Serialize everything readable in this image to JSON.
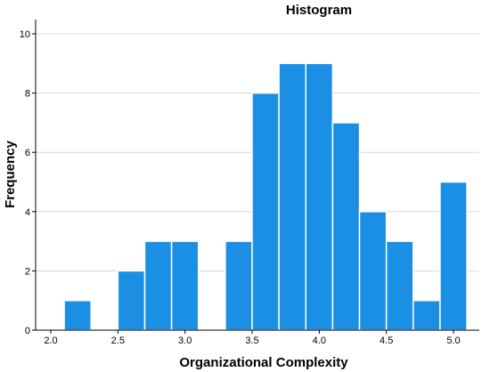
{
  "chart_data": {
    "type": "bar",
    "title": "Histogram",
    "xlabel": "Organizational Complexity",
    "ylabel": "Frequency",
    "bin_width": 0.2,
    "bins": [
      {
        "start": 2.1,
        "end": 2.3,
        "count": 1
      },
      {
        "start": 2.3,
        "end": 2.5,
        "count": 0
      },
      {
        "start": 2.5,
        "end": 2.7,
        "count": 2
      },
      {
        "start": 2.7,
        "end": 2.9,
        "count": 3
      },
      {
        "start": 2.9,
        "end": 3.1,
        "count": 3
      },
      {
        "start": 3.1,
        "end": 3.3,
        "count": 0
      },
      {
        "start": 3.3,
        "end": 3.5,
        "count": 3
      },
      {
        "start": 3.5,
        "end": 3.7,
        "count": 8
      },
      {
        "start": 3.7,
        "end": 3.9,
        "count": 9
      },
      {
        "start": 3.9,
        "end": 4.1,
        "count": 9
      },
      {
        "start": 4.1,
        "end": 4.3,
        "count": 7
      },
      {
        "start": 4.3,
        "end": 4.5,
        "count": 4
      },
      {
        "start": 4.5,
        "end": 4.7,
        "count": 3
      },
      {
        "start": 4.7,
        "end": 4.9,
        "count": 1
      },
      {
        "start": 4.9,
        "end": 5.1,
        "count": 5
      }
    ],
    "xlim": [
      2.0,
      5.2
    ],
    "ylim": [
      0,
      10.5
    ],
    "x_ticks": [
      "2.0",
      "2.5",
      "3.0",
      "3.5",
      "4.0",
      "4.5",
      "5.0"
    ],
    "y_ticks": [
      "0",
      "2",
      "4",
      "6",
      "8",
      "10"
    ],
    "grid": "horizontal",
    "legend": "none",
    "bar_color": "#1A8FE3"
  }
}
